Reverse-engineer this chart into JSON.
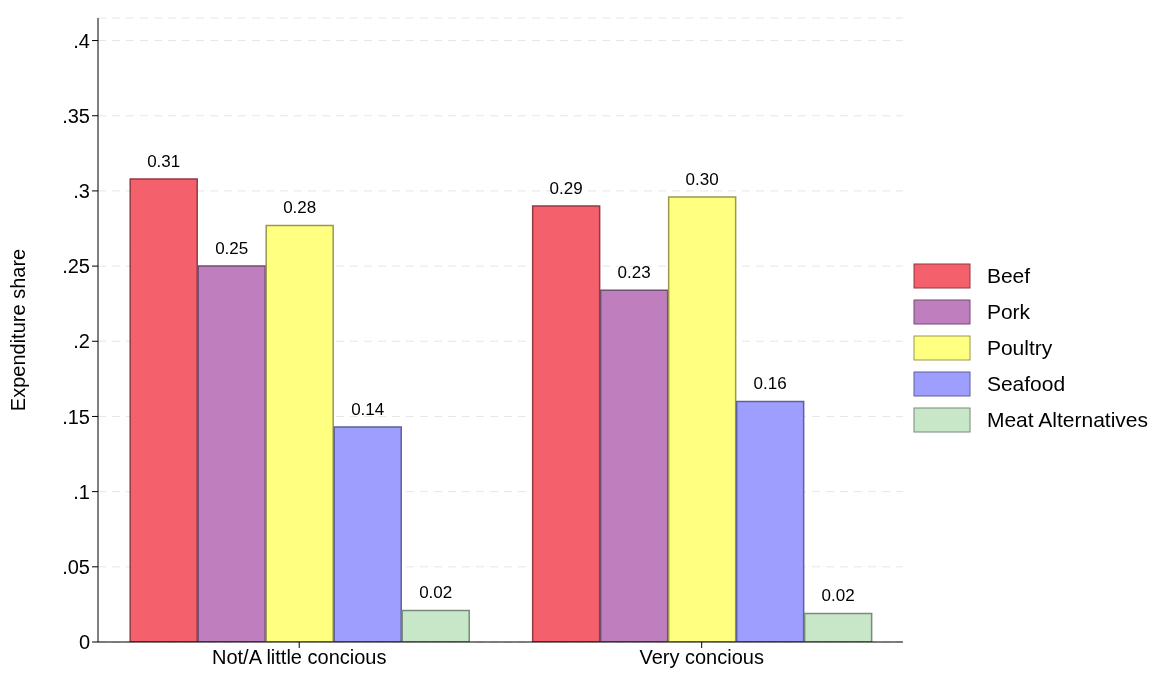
{
  "chart_data": {
    "type": "bar",
    "ylabel": "Expenditure share",
    "categories": [
      "Not/A little concious",
      "Very concious"
    ],
    "series": [
      {
        "name": "Beef",
        "color": "#f4606c",
        "values": [
          0.308,
          0.29
        ],
        "value_labels": [
          "0.31",
          "0.29"
        ]
      },
      {
        "name": "Pork",
        "color": "#bf7fbf",
        "values": [
          0.25,
          0.234
        ],
        "value_labels": [
          "0.25",
          "0.23"
        ]
      },
      {
        "name": "Poultry",
        "color": "#ffff80",
        "values": [
          0.277,
          0.296
        ],
        "value_labels": [
          "0.28",
          "0.30"
        ]
      },
      {
        "name": "Seafood",
        "color": "#9e9eff",
        "values": [
          0.143,
          0.16
        ],
        "value_labels": [
          "0.14",
          "0.16"
        ]
      },
      {
        "name": "Meat Alternatives",
        "color": "#c8e6c8",
        "values": [
          0.021,
          0.019
        ],
        "value_labels": [
          "0.02",
          "0.02"
        ]
      }
    ],
    "ylim": [
      0,
      0.415
    ],
    "yticks": [
      {
        "value": 0,
        "label": "0"
      },
      {
        "value": 0.05,
        "label": ".05"
      },
      {
        "value": 0.1,
        "label": ".1"
      },
      {
        "value": 0.15,
        "label": ".15"
      },
      {
        "value": 0.2,
        "label": ".2"
      },
      {
        "value": 0.25,
        "label": ".25"
      },
      {
        "value": 0.3,
        "label": ".3"
      },
      {
        "value": 0.35,
        "label": ".35"
      },
      {
        "value": 0.4,
        "label": ".4"
      }
    ],
    "grid": "y",
    "legend": "right"
  }
}
